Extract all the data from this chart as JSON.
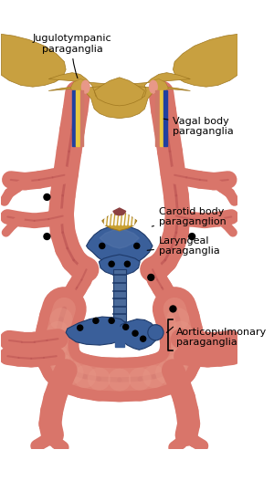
{
  "background_color": "#ffffff",
  "labels": {
    "jugulotympanic": "Jugulotympanic\nparaganglia",
    "vagal": "Vagal body\nparaganglia",
    "carotid": "Carotid body\nparaganglion",
    "laryngeal": "Laryngeal\nparaganglia",
    "aorticopulmonary": "Aorticopulmonary\nparaganglia"
  },
  "colors": {
    "bone": "#C8A040",
    "bone_shadow": "#A07820",
    "vessel_pink": "#D9756A",
    "vessel_light": "#E89888",
    "vessel_dark": "#B85050",
    "blue_main": "#3A5F9A",
    "blue_light": "#5575AA",
    "blue_dark": "#1E3A6A",
    "trachea": "#4A6A9A",
    "gold": "#C8A030",
    "white_cart": "#E8E8E8",
    "yellow_nerve": "#E8C840",
    "nerve_blue": "#2040A0",
    "nerve_pink": "#D07868",
    "black": "#000000"
  },
  "figsize": [
    3.0,
    5.27
  ],
  "dpi": 100
}
